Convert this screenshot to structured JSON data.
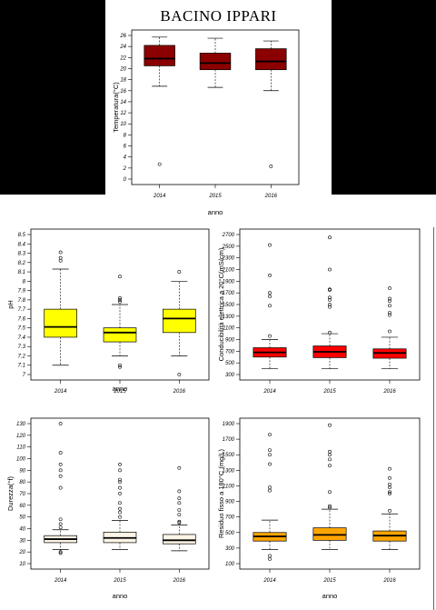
{
  "title": "BACINO IPPARI",
  "colors": {
    "temperatura": "#8b0000",
    "ph": "#ffff00",
    "conducibilita": "#ff0000",
    "durezza": "#fdf5e6",
    "residuo": "#ffa500"
  },
  "chart_data": [
    {
      "id": "temperatura",
      "type": "boxplot",
      "ylabel": "Temperatura(°C)",
      "xlabel": "anno",
      "categories": [
        "2014",
        "2015",
        "2016"
      ],
      "ylim": [
        0,
        26
      ],
      "yticks": [
        0,
        2,
        4,
        6,
        8,
        10,
        12,
        14,
        16,
        18,
        20,
        22,
        24,
        26
      ],
      "boxes": [
        {
          "min": 16.8,
          "q1": 20.5,
          "median": 21.8,
          "q3": 24.2,
          "max": 25.7,
          "outliers": [
            2.7
          ]
        },
        {
          "min": 16.6,
          "q1": 19.8,
          "median": 21.0,
          "q3": 22.8,
          "max": 25.5,
          "outliers": []
        },
        {
          "min": 16.0,
          "q1": 19.8,
          "median": 21.3,
          "q3": 23.6,
          "max": 25.0,
          "outliers": [
            2.3
          ]
        }
      ]
    },
    {
      "id": "ph",
      "type": "boxplot",
      "ylabel": "pH",
      "xlabel": "anno",
      "categories": [
        "2014",
        "2015",
        "2016"
      ],
      "ylim": [
        7.0,
        8.5
      ],
      "yticks": [
        7.0,
        7.1,
        7.2,
        7.3,
        7.4,
        7.5,
        7.6,
        7.7,
        7.8,
        7.9,
        8.0,
        8.1,
        8.2,
        8.3,
        8.4,
        8.5
      ],
      "boxes": [
        {
          "min": 7.1,
          "q1": 7.4,
          "median": 7.51,
          "q3": 7.7,
          "max": 8.13,
          "outliers": [
            8.22,
            8.25,
            8.31
          ]
        },
        {
          "min": 7.2,
          "q1": 7.35,
          "median": 7.45,
          "q3": 7.5,
          "max": 7.75,
          "outliers": [
            7.08,
            7.1,
            7.78,
            7.8,
            7.82,
            8.05
          ]
        },
        {
          "min": 7.2,
          "q1": 7.45,
          "median": 7.6,
          "q3": 7.7,
          "max": 8.0,
          "outliers": [
            7.0,
            8.1
          ]
        }
      ]
    },
    {
      "id": "conducibilita",
      "type": "boxplot",
      "ylabel": "Conducibilità elettrica a 20°C(mS/cm)",
      "xlabel": "",
      "categories": [
        "2014",
        "2015",
        "2016"
      ],
      "ylim": [
        300,
        2700
      ],
      "yticks": [
        300,
        500,
        700,
        900,
        1100,
        1300,
        1500,
        1700,
        1900,
        2100,
        2300,
        2500,
        2700
      ],
      "boxes": [
        {
          "min": 400,
          "q1": 600,
          "median": 680,
          "q3": 760,
          "max": 900,
          "outliers": [
            960,
            1480,
            1640,
            1700,
            2000,
            2520
          ]
        },
        {
          "min": 400,
          "q1": 590,
          "median": 690,
          "q3": 790,
          "max": 1000,
          "outliers": [
            1020,
            1460,
            1500,
            1580,
            1620,
            1750,
            1760,
            2100,
            2650
          ]
        },
        {
          "min": 400,
          "q1": 580,
          "median": 670,
          "q3": 740,
          "max": 940,
          "outliers": [
            1040,
            1320,
            1360,
            1480,
            1560,
            1600,
            1780
          ]
        }
      ]
    },
    {
      "id": "durezza",
      "type": "boxplot",
      "ylabel": "Durezza(°f)",
      "xlabel": "anno",
      "categories": [
        "2014",
        "2015",
        "2016"
      ],
      "ylim": [
        10,
        130
      ],
      "yticks": [
        10,
        20,
        30,
        40,
        50,
        60,
        70,
        80,
        90,
        100,
        110,
        120,
        130
      ],
      "boxes": [
        {
          "min": 22,
          "q1": 28,
          "median": 31,
          "q3": 34,
          "max": 39,
          "outliers": [
            19,
            20,
            41,
            44,
            48,
            75,
            85,
            90,
            95,
            105,
            130
          ]
        },
        {
          "min": 22,
          "q1": 28,
          "median": 32,
          "q3": 37,
          "max": 47,
          "outliers": [
            50,
            54,
            57,
            62,
            70,
            75,
            80,
            82,
            90,
            95
          ]
        },
        {
          "min": 21,
          "q1": 27,
          "median": 30,
          "q3": 35,
          "max": 43,
          "outliers": [
            45,
            46,
            52,
            56,
            62,
            66,
            72,
            92
          ]
        }
      ]
    },
    {
      "id": "residuo",
      "type": "boxplot",
      "ylabel": "Residuo fisso a 180°C (mg/L)",
      "xlabel": "anno",
      "categories": [
        "2014",
        "2015",
        "2016"
      ],
      "ylim": [
        100,
        1900
      ],
      "yticks": [
        100,
        300,
        500,
        700,
        900,
        1100,
        1300,
        1500,
        1700,
        1900
      ],
      "boxes": [
        {
          "min": 280,
          "q1": 390,
          "median": 450,
          "q3": 500,
          "max": 660,
          "outliers": [
            160,
            200,
            1040,
            1080,
            1380,
            1500,
            1560,
            1760
          ]
        },
        {
          "min": 280,
          "q1": 400,
          "median": 470,
          "q3": 560,
          "max": 800,
          "outliers": [
            820,
            840,
            1020,
            1360,
            1440,
            1500,
            1540,
            1880
          ]
        },
        {
          "min": 280,
          "q1": 390,
          "median": 460,
          "q3": 520,
          "max": 740,
          "outliers": [
            780,
            1000,
            1020,
            1080,
            1120,
            1200,
            1320
          ]
        }
      ]
    }
  ]
}
